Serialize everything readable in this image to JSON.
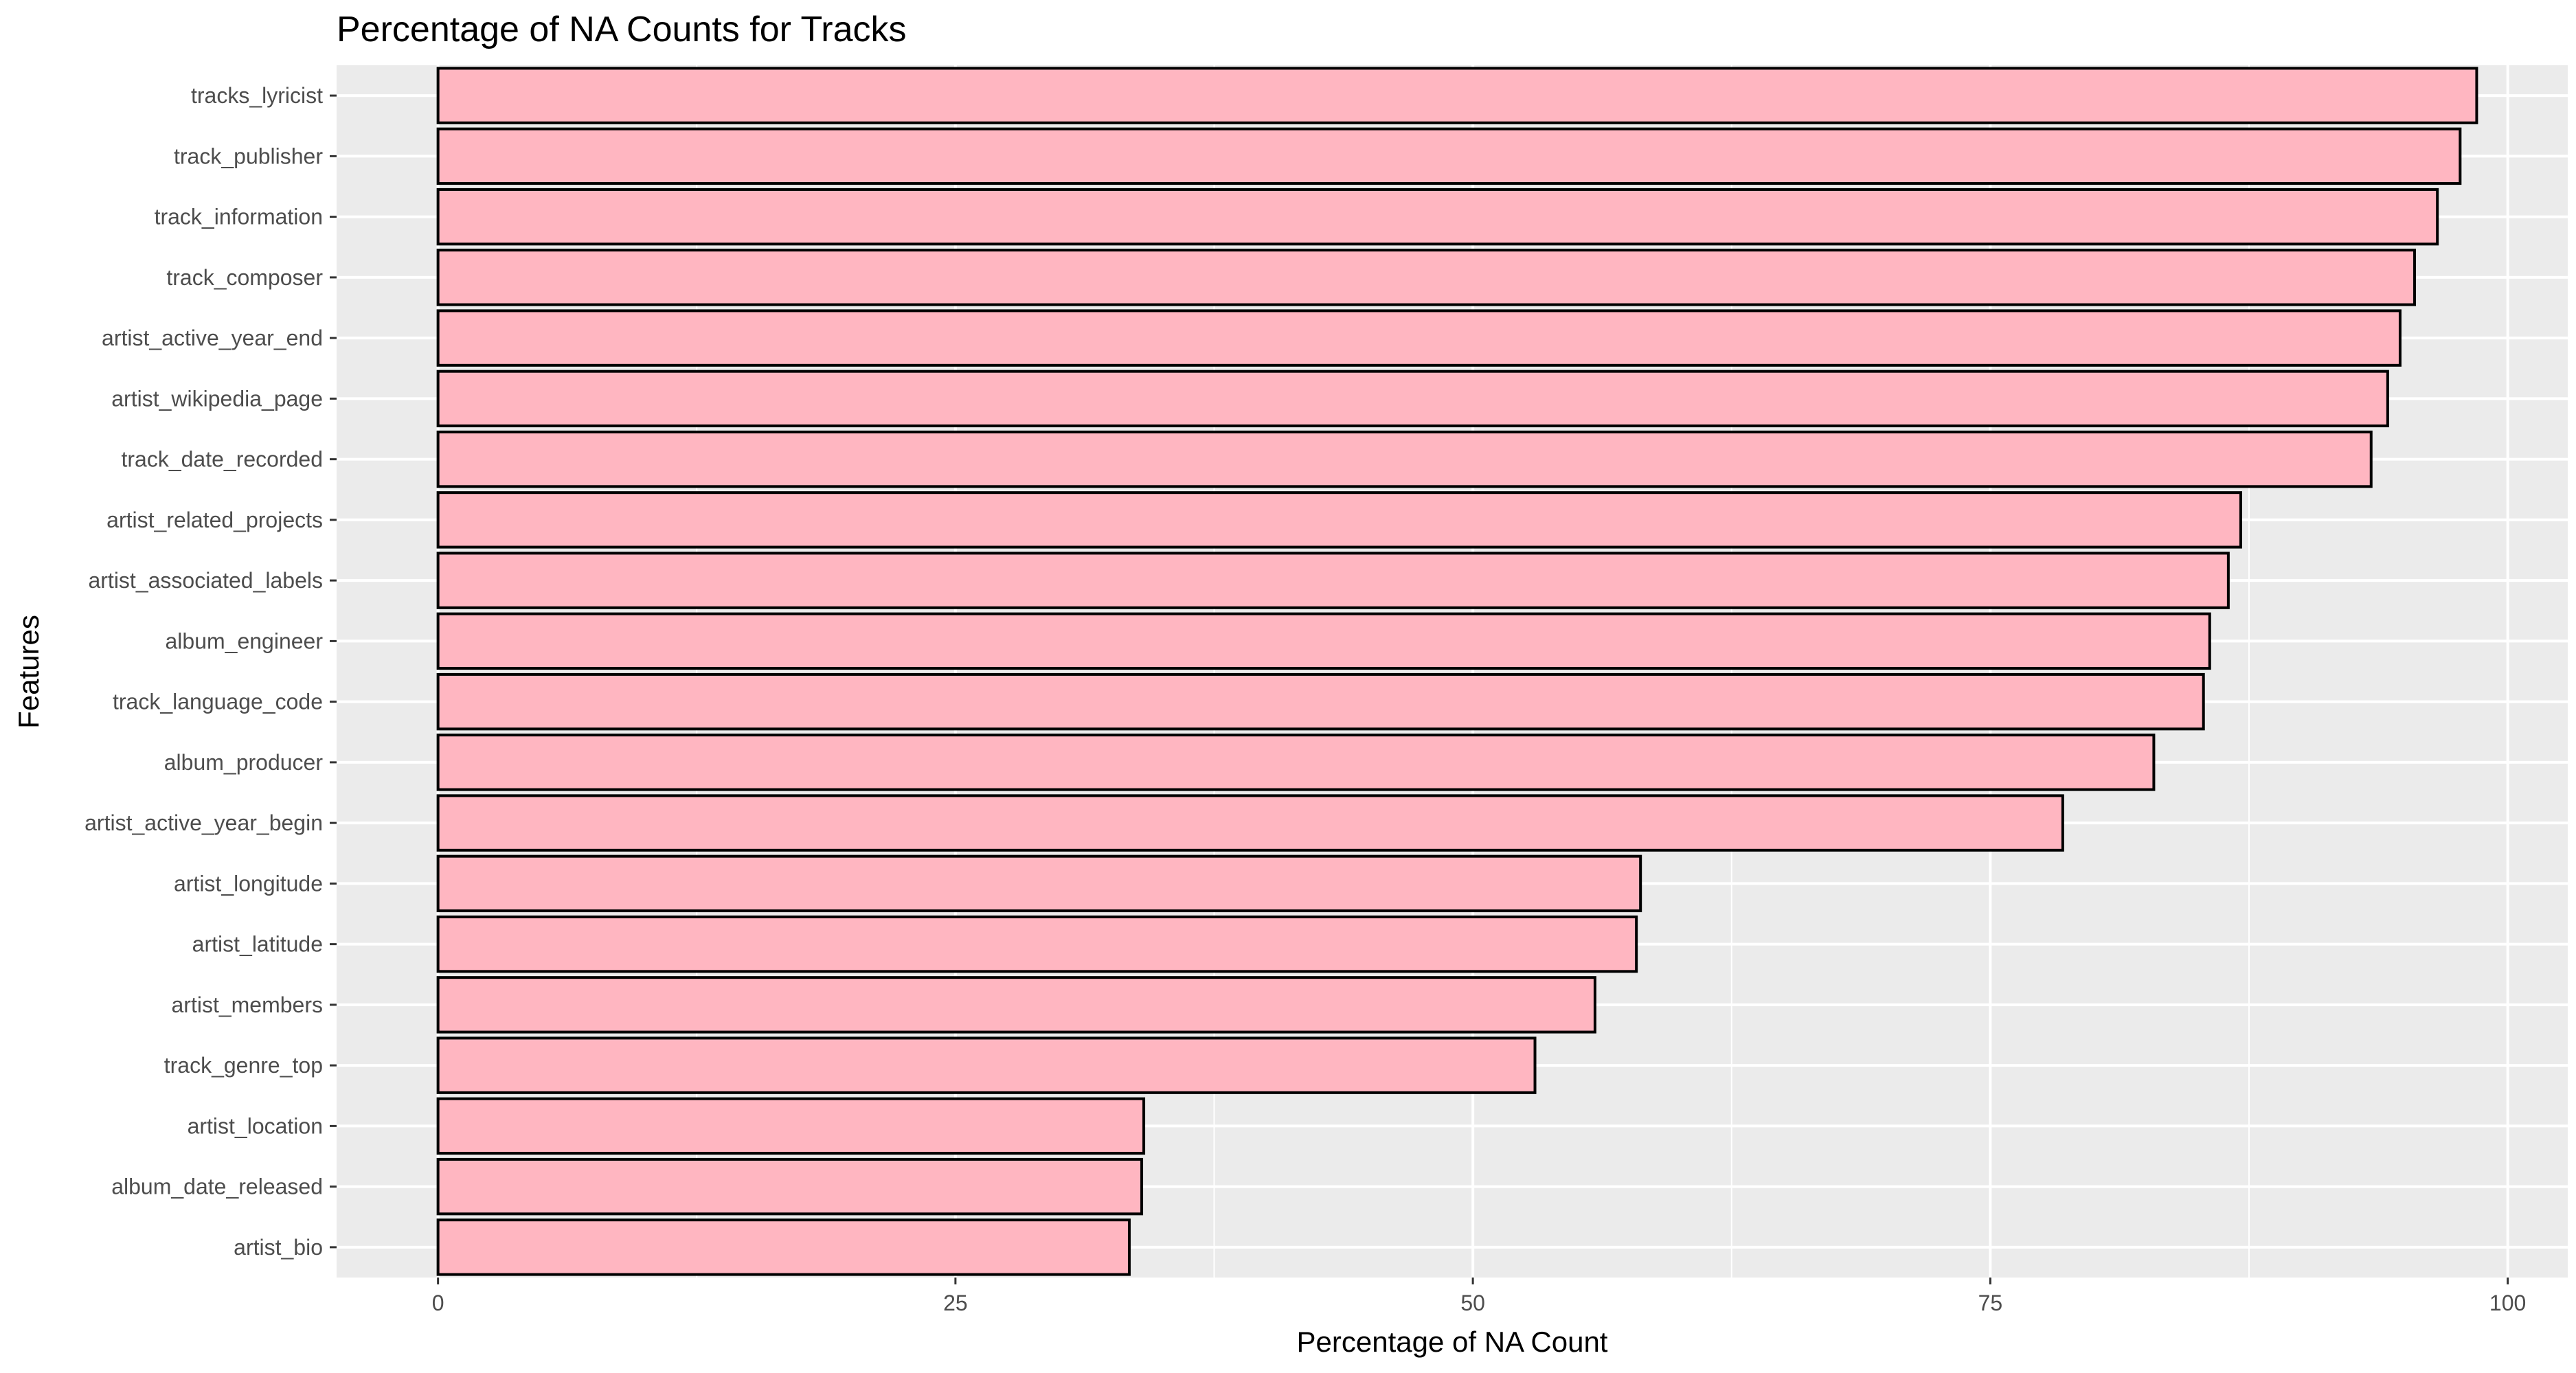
{
  "chart_data": {
    "type": "bar",
    "orientation": "horizontal",
    "title": "Percentage of NA Counts for Tracks",
    "xlabel": "Percentage of NA Count",
    "ylabel": "Features",
    "xlim": [
      -4.9,
      102.9
    ],
    "x_ticks": [
      0,
      25,
      50,
      75,
      100
    ],
    "x_tick_labels": [
      "0",
      "25",
      "50",
      "75",
      "100"
    ],
    "grid": true,
    "legend": "none",
    "colors": {
      "panel_background": "#ebebeb",
      "grid_line": "#ffffff",
      "bar_fill": "#ffb6c1",
      "bar_outline": "#000000",
      "tick_text": "#4d4d4d",
      "tick_mark": "#333333"
    },
    "categories": [
      "tracks_lyricist",
      "track_publisher",
      "track_information",
      "track_composer",
      "artist_active_year_end",
      "artist_wikipedia_page",
      "track_date_recorded",
      "artist_related_projects",
      "artist_associated_labels",
      "album_engineer",
      "track_language_code",
      "album_producer",
      "artist_active_year_begin",
      "artist_longitude",
      "artist_latitude",
      "artist_members",
      "track_genre_top",
      "artist_location",
      "album_date_released",
      "artist_bio"
    ],
    "values": [
      98.5,
      97.7,
      96.6,
      95.5,
      94.8,
      94.2,
      93.4,
      87.1,
      86.5,
      85.6,
      85.3,
      82.9,
      78.5,
      58.1,
      57.9,
      55.9,
      53.0,
      34.1,
      34.0,
      33.4
    ]
  }
}
